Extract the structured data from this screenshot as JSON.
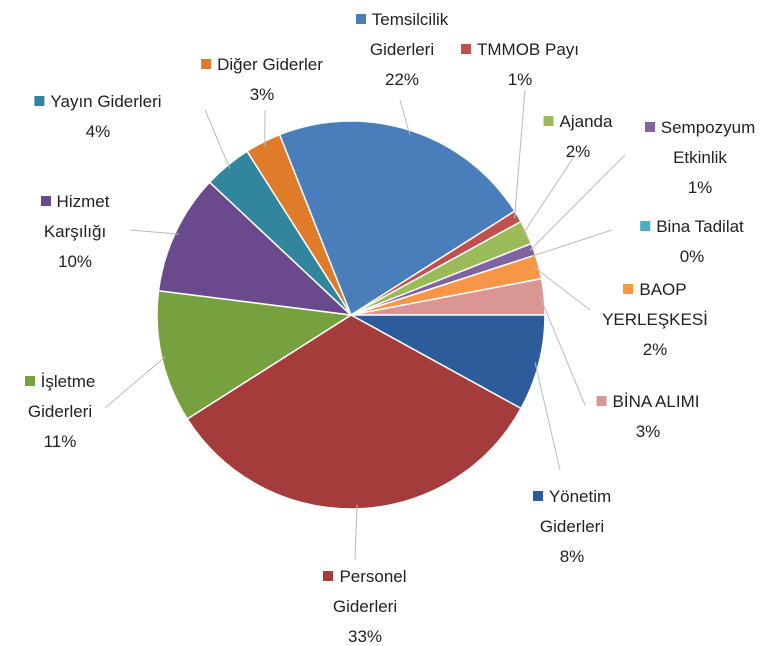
{
  "chart_data": {
    "type": "pie",
    "categories": [
      "Temsilcilik Giderleri",
      "TMMOB Payı",
      "Ajanda",
      "Sempozyum Etkinlik",
      "Bina Tadilat",
      "BAOP YERLEŞKESİ",
      "BİNA ALIMI",
      "Yönetim Giderleri",
      "Personel Giderleri",
      "İşletme Giderleri",
      "Hizmet Karşılığı",
      "Yayın Giderleri",
      "Diğer Giderler"
    ],
    "values": [
      22,
      1,
      2,
      1,
      0,
      2,
      3,
      8,
      33,
      11,
      10,
      4,
      3
    ],
    "value_labels": [
      "22%",
      "1%",
      "2%",
      "1%",
      "0%",
      "2%",
      "3%",
      "8%",
      "33%",
      "11%",
      "10%",
      "4%",
      "3%"
    ],
    "colors": [
      "#4a7ebb",
      "#c0504d",
      "#9bbb59",
      "#8064a2",
      "#4bacc6",
      "#f79646",
      "#d99694",
      "#2c5d9a",
      "#a33c3a",
      "#77a03e",
      "#6a4a8c",
      "#31859c",
      "#e07b2a"
    ]
  }
}
